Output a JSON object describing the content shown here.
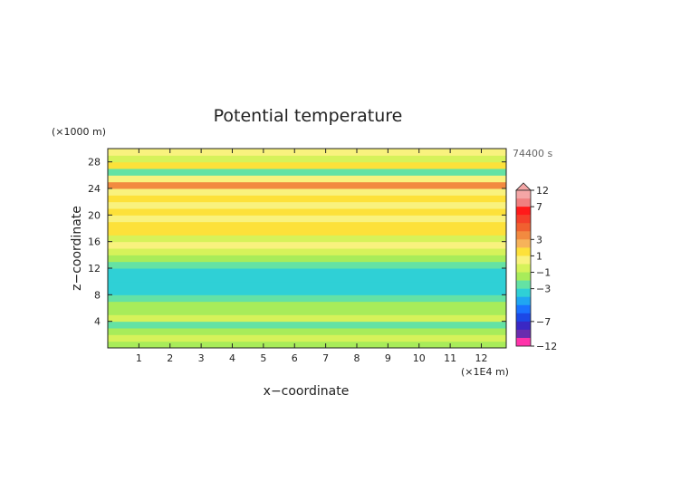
{
  "chart_data": {
    "type": "heatmap",
    "title": "Potential temperature",
    "xlabel": "x−coordinate",
    "ylabel": "z−coordinate",
    "x_unit": "(×1E4 m)",
    "y_unit": "(×1000 m)",
    "time_label": "74400 s",
    "xlim": [
      0,
      12.8
    ],
    "ylim": [
      0,
      30
    ],
    "x_ticks": [
      "1",
      "2",
      "3",
      "4",
      "5",
      "6",
      "7",
      "8",
      "9",
      "10",
      "11",
      "12"
    ],
    "y_ticks": [
      "4",
      "8",
      "12",
      "16",
      "20",
      "24",
      "28"
    ],
    "colorbar": {
      "tick_labels": [
        "12",
        "7",
        "3",
        "1",
        "−1",
        "−3",
        "−7",
        "−12"
      ],
      "levels": [
        12,
        9,
        7,
        6,
        5,
        4,
        3,
        2,
        1,
        0,
        -1,
        -2,
        -3,
        -4,
        -5,
        -6,
        -7,
        -9,
        -12
      ],
      "colors": [
        "#f4a6a6",
        "#f08080",
        "#ff1a1a",
        "#f4402a",
        "#f06030",
        "#f28a40",
        "#f6b35a",
        "#fde13a",
        "#f9f27e",
        "#d6f25a",
        "#a8ec5a",
        "#64e2a4",
        "#2fd0d6",
        "#20a6f2",
        "#1a72ff",
        "#1c48e6",
        "#3a28c4",
        "#6a2cae",
        "#ff33aa"
      ]
    },
    "bands": [
      {
        "z": [
          0,
          1
        ],
        "value": -1
      },
      {
        "z": [
          1,
          2
        ],
        "value": 0
      },
      {
        "z": [
          2,
          3
        ],
        "value": -1
      },
      {
        "z": [
          3,
          4
        ],
        "value": -1.5
      },
      {
        "z": [
          4,
          5
        ],
        "value": 0.6
      },
      {
        "z": [
          5,
          6
        ],
        "value": -1
      },
      {
        "z": [
          6,
          7
        ],
        "value": -1
      },
      {
        "z": [
          7,
          8
        ],
        "value": -1.3
      },
      {
        "z": [
          8,
          9
        ],
        "value": -2.2
      },
      {
        "z": [
          9,
          10
        ],
        "value": -3
      },
      {
        "z": [
          10,
          11
        ],
        "value": -3
      },
      {
        "z": [
          11,
          12
        ],
        "value": -2.5
      },
      {
        "z": [
          12,
          13
        ],
        "value": -1.5
      },
      {
        "z": [
          13,
          14
        ],
        "value": -0.5
      },
      {
        "z": [
          14,
          15
        ],
        "value": 0.5
      },
      {
        "z": [
          15,
          16
        ],
        "value": 1.2
      },
      {
        "z": [
          16,
          17
        ],
        "value": 0.8
      },
      {
        "z": [
          17,
          18
        ],
        "value": 2.5
      },
      {
        "z": [
          18,
          19
        ],
        "value": 2
      },
      {
        "z": [
          19,
          20
        ],
        "value": 1.5
      },
      {
        "z": [
          20,
          21
        ],
        "value": 2.5
      },
      {
        "z": [
          21,
          22
        ],
        "value": 1.8
      },
      {
        "z": [
          22,
          23
        ],
        "value": 2.6
      },
      {
        "z": [
          23,
          24
        ],
        "value": 1.5
      },
      {
        "z": [
          24,
          25
        ],
        "value": 4
      },
      {
        "z": [
          25,
          26
        ],
        "value": 1
      },
      {
        "z": [
          26,
          27
        ],
        "value": -1.5
      },
      {
        "z": [
          27,
          28
        ],
        "value": 2
      },
      {
        "z": [
          28,
          29
        ],
        "value": 0.5
      },
      {
        "z": [
          29,
          30
        ],
        "value": 1
      }
    ]
  }
}
